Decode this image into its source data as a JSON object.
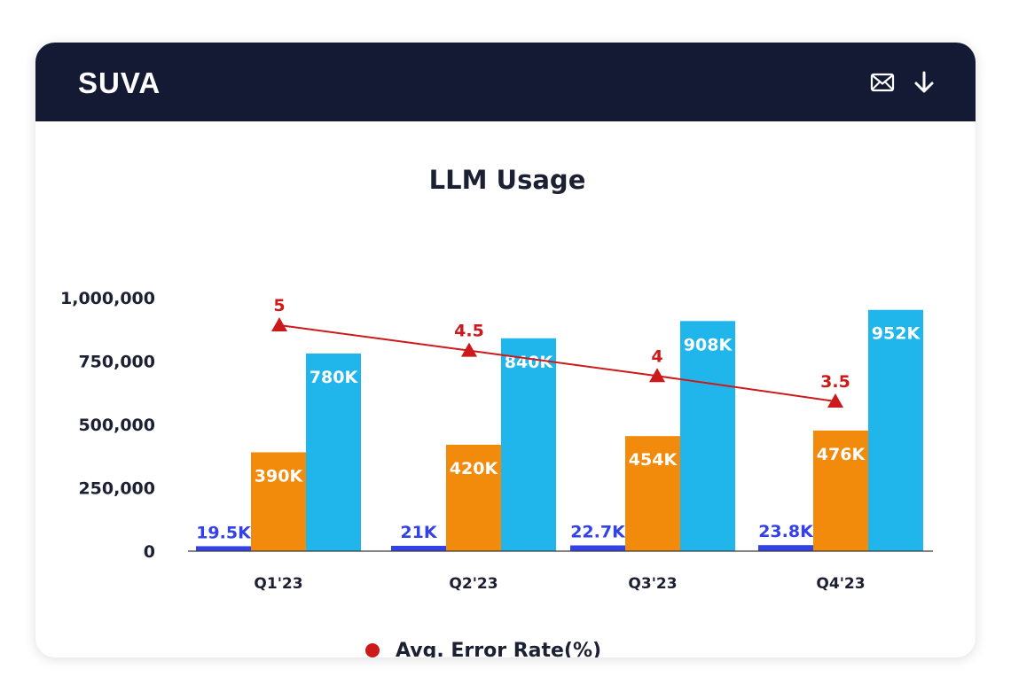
{
  "header": {
    "logo_text": "SUVA",
    "icons": [
      "mail-icon",
      "download-icon"
    ]
  },
  "colors": {
    "header_bg": "#141a33",
    "series_small": "#3341e8",
    "series_mid": "#f28a0c",
    "series_large": "#20b6ec",
    "error_line": "#cc1a1a"
  },
  "chart_data": {
    "type": "bar",
    "title": "LLM Usage",
    "categories": [
      "Q1'23",
      "Q2'23",
      "Q3'23",
      "Q4'23"
    ],
    "ylim": [
      0,
      1000000
    ],
    "yticks": [
      0,
      250000,
      500000,
      750000,
      1000000
    ],
    "ytick_labels": [
      "0",
      "250,000",
      "500,000",
      "750,000",
      "1,000,000"
    ],
    "grid": false,
    "series": [
      {
        "values": [
          19500,
          21000,
          22700,
          23800
        ],
        "labels": [
          "19.5K",
          "21K",
          "22.7K",
          "23.8K"
        ],
        "color": "#3341e8"
      },
      {
        "values": [
          390000,
          420000,
          454000,
          476000
        ],
        "labels": [
          "390K",
          "420K",
          "454K",
          "476K"
        ],
        "color": "#f28a0c"
      },
      {
        "values": [
          780000,
          840000,
          908000,
          952000
        ],
        "labels": [
          "780K",
          "840K",
          "908K",
          "952K"
        ],
        "color": "#20b6ec"
      }
    ],
    "line_series": {
      "name": "Avg. Error Rate(%)",
      "values": [
        5,
        4.5,
        4,
        3.5
      ],
      "labels": [
        "5",
        "4.5",
        "4",
        "3.5"
      ],
      "color": "#cc1a1a",
      "marker": "triangle"
    },
    "legend": {
      "position": "bottom",
      "entries": [
        "Avg. Error Rate(%)"
      ]
    }
  }
}
